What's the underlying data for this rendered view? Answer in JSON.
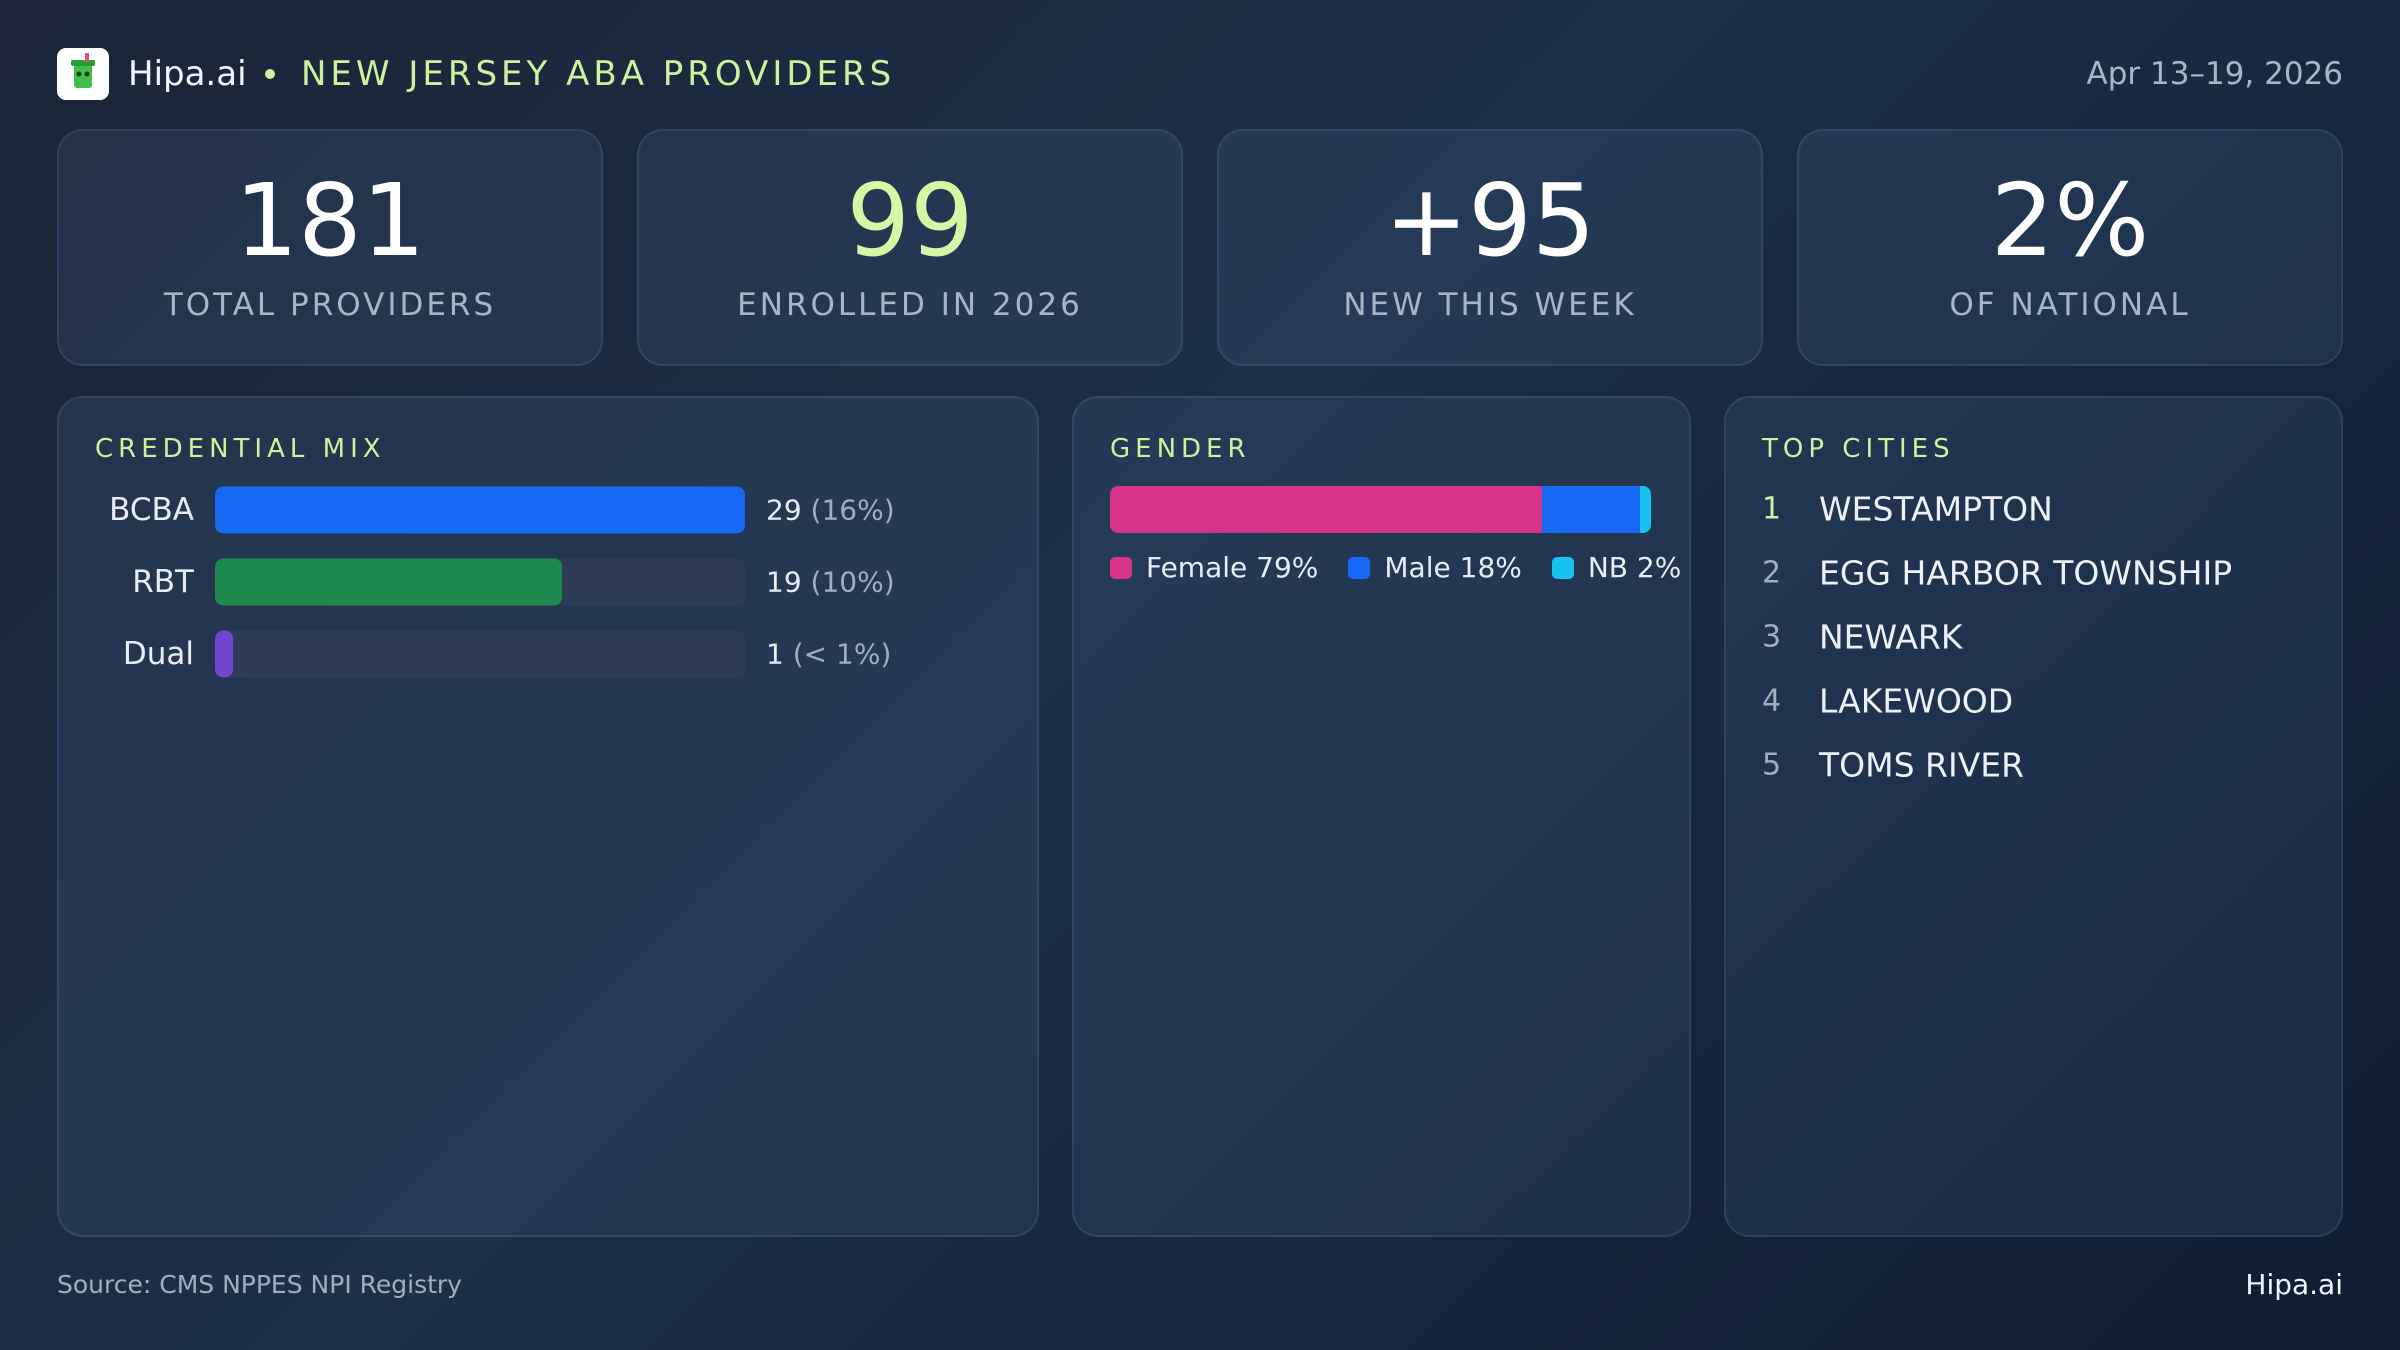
{
  "header": {
    "brand": "Hipa.ai",
    "title": "NEW JERSEY ABA PROVIDERS",
    "date": "Apr 13–19, 2026"
  },
  "kpis": [
    {
      "value": "181",
      "label": "TOTAL PROVIDERS",
      "color": "#ffffff"
    },
    {
      "value": "99",
      "label": "ENROLLED IN 2026",
      "color": "#d6f7a3"
    },
    {
      "value": "+95",
      "label": "NEW THIS WEEK",
      "color": "#ffffff"
    },
    {
      "value": "2%",
      "label": "OF NATIONAL",
      "color": "#ffffff"
    }
  ],
  "chart_data": [
    {
      "type": "bar",
      "orientation": "horizontal",
      "title": "CREDENTIAL MIX",
      "categories": [
        "BCBA",
        "RBT",
        "Dual"
      ],
      "values": [
        29,
        19,
        1
      ],
      "share_labels": [
        "(16%)",
        "(10%)",
        "(< 1%)"
      ],
      "colors": [
        "#1569f5",
        "#1f8a4f",
        "#7445d2"
      ]
    },
    {
      "type": "stacked-bar",
      "orientation": "horizontal",
      "title": "GENDER",
      "categories": [
        "Female",
        "Male",
        "NB"
      ],
      "values": [
        79,
        18,
        2
      ],
      "value_labels": [
        "79%",
        "18%",
        "2%"
      ],
      "colors": [
        "#d6338a",
        "#1569f5",
        "#17c2ec"
      ]
    }
  ],
  "top_cities": {
    "title": "TOP CITIES",
    "items": [
      {
        "rank": 1,
        "name": "WESTAMPTON"
      },
      {
        "rank": 2,
        "name": "EGG HARBOR TOWNSHIP"
      },
      {
        "rank": 3,
        "name": "NEWARK"
      },
      {
        "rank": 4,
        "name": "LAKEWOOD"
      },
      {
        "rank": 5,
        "name": "TOMS RIVER"
      }
    ]
  },
  "footer": {
    "source": "Source: CMS NPPES NPI Registry",
    "brand": "Hipa.ai"
  }
}
